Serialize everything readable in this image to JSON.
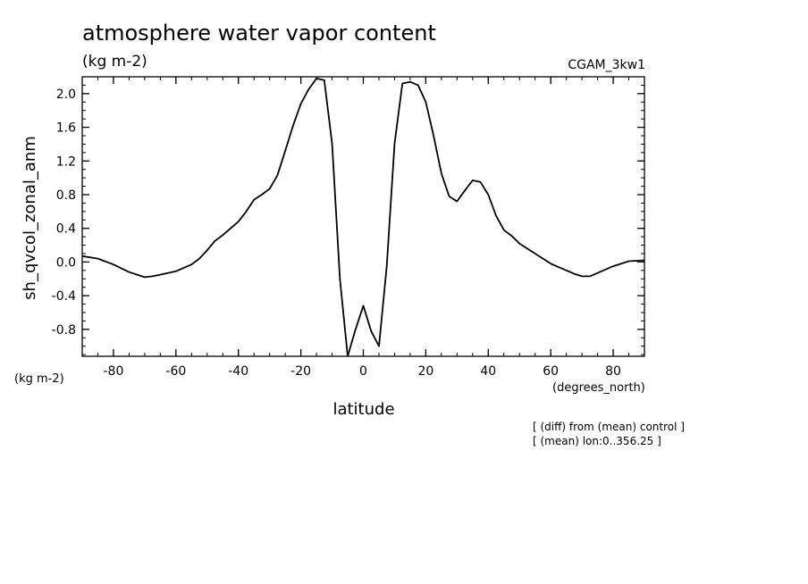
{
  "chart_data": {
    "type": "line",
    "title": "atmosphere water vapor content",
    "units_label": "(kg m-2)",
    "run_label": "CGAM_3kw1",
    "ylabel": "sh_qvcol_zonal_anm",
    "y_units_label": "(kg m-2)",
    "xlabel": "latitude",
    "x_units_label": "(degrees_north)",
    "notes": [
      "[ (diff) from (mean) control ]",
      "[ (mean) lon:0..356.25 ]"
    ],
    "xlim": [
      -90,
      90
    ],
    "ylim": [
      -1.12,
      2.2
    ],
    "x_ticks": [
      -80,
      -60,
      -40,
      -20,
      0,
      20,
      40,
      60,
      80
    ],
    "x_tick_labels": [
      "-80",
      "-60",
      "-40",
      "-20",
      "0",
      "20",
      "40",
      "60",
      "80"
    ],
    "y_ticks": [
      -0.8,
      -0.4,
      0.0,
      0.4,
      0.8,
      1.2,
      1.6,
      2.0
    ],
    "y_tick_labels": [
      "-0.8",
      "-0.4",
      "0.0",
      "0.4",
      "0.8",
      "1.2",
      "1.6",
      "2.0"
    ],
    "grid": false,
    "series": [
      {
        "x": [
          -90,
          -85,
          -80,
          -75,
          -70,
          -67.5,
          -65,
          -60,
          -55,
          -52.5,
          -50,
          -47.5,
          -45,
          -42.5,
          -40,
          -37.5,
          -35,
          -32.5,
          -30,
          -27.5,
          -25,
          -22.5,
          -20,
          -17.5,
          -15,
          -12.5,
          -10,
          -7.5,
          -5,
          -2.5,
          0,
          2.5,
          5,
          7.5,
          10,
          12.5,
          15,
          17.5,
          20,
          22.5,
          25,
          27.5,
          30,
          32.5,
          35,
          37.5,
          40,
          42.5,
          45,
          47.5,
          50,
          55,
          60,
          65,
          67.5,
          70,
          72.5,
          75,
          80,
          85,
          90
        ],
        "y": [
          0.07,
          0.04,
          -0.03,
          -0.12,
          -0.18,
          -0.17,
          -0.15,
          -0.11,
          -0.03,
          0.04,
          0.14,
          0.25,
          0.32,
          0.4,
          0.48,
          0.6,
          0.74,
          0.8,
          0.87,
          1.03,
          1.32,
          1.62,
          1.88,
          2.05,
          2.18,
          2.16,
          1.4,
          -0.2,
          -1.12,
          -0.8,
          -0.52,
          -0.82,
          -1.0,
          -0.05,
          1.4,
          2.12,
          2.14,
          2.1,
          1.9,
          1.5,
          1.05,
          0.78,
          0.72,
          0.85,
          0.97,
          0.95,
          0.8,
          0.55,
          0.38,
          0.31,
          0.22,
          0.1,
          -0.02,
          -0.1,
          -0.14,
          -0.17,
          -0.17,
          -0.13,
          -0.05,
          0.01,
          0.02
        ]
      }
    ]
  }
}
